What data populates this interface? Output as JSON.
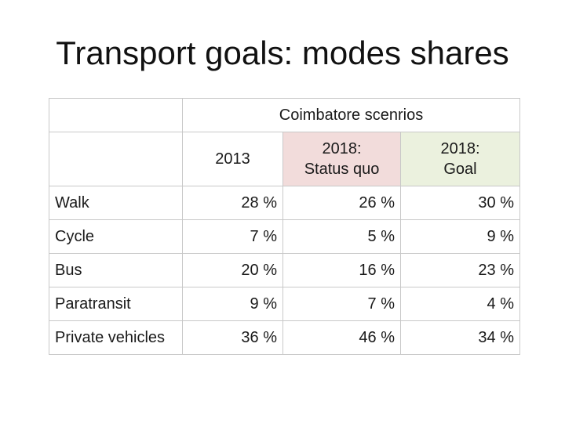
{
  "title": "Transport goals: modes shares",
  "table": {
    "group_header": "Coimbatore scenrios",
    "columns": [
      {
        "line1": "2013",
        "line2": ""
      },
      {
        "line1": "2018:",
        "line2": "Status quo"
      },
      {
        "line1": "2018:",
        "line2": "Goal"
      }
    ],
    "rows": [
      {
        "mode": "Walk",
        "v2013": "28 %",
        "status_quo": "26 %",
        "goal": "30 %"
      },
      {
        "mode": "Cycle",
        "v2013": "7 %",
        "status_quo": "5 %",
        "goal": "9 %"
      },
      {
        "mode": "Bus",
        "v2013": "20 %",
        "status_quo": "16 %",
        "goal": "23 %"
      },
      {
        "mode": "Paratransit",
        "v2013": "9 %",
        "status_quo": "7 %",
        "goal": "4 %"
      },
      {
        "mode": "Private vehicles",
        "v2013": "36 %",
        "status_quo": "46 %",
        "goal": "34 %"
      }
    ],
    "colors": {
      "status_quo_bg": "#f2dcdb",
      "goal_bg": "#ebf1de",
      "border": "#c8c8c8"
    }
  }
}
